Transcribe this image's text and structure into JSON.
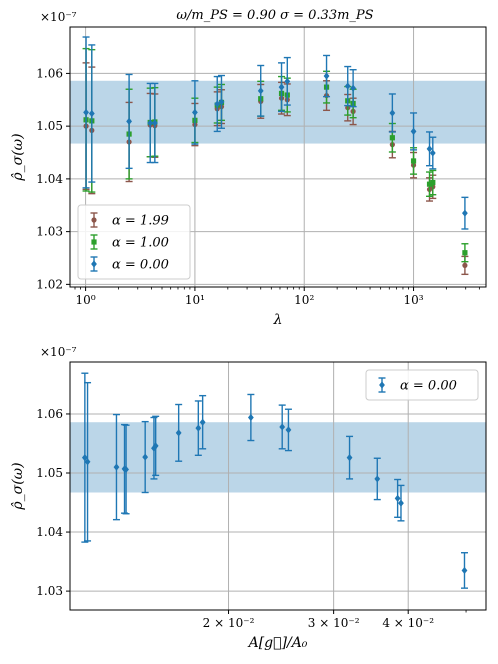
{
  "colors": {
    "alpha_199": "#8c564b",
    "alpha_100": "#2ca02c",
    "alpha_000": "#1f77b4",
    "band": "#1f77b4"
  },
  "chart_data": [
    {
      "type": "scatter",
      "title": "ω/m_PS = 0.90  σ = 0.33m_PS",
      "xlabel": "λ",
      "ylabel": "ρ̂_σ(ω)",
      "y_multiplier": "×10⁻⁷",
      "xscale": "log",
      "xlim": [
        0.72,
        4600
      ],
      "ylim": [
        1.0195,
        1.0688
      ],
      "x_ticks": [
        1,
        10,
        100,
        1000
      ],
      "x_tick_labels": [
        "10⁰",
        "10¹",
        "10²",
        "10³"
      ],
      "y_ticks": [
        1.02,
        1.03,
        1.04,
        1.05,
        1.06
      ],
      "y_tick_labels": [
        "1.02",
        "1.03",
        "1.04",
        "1.05",
        "1.06"
      ],
      "grid": true,
      "band": {
        "y_low": 1.0467,
        "y_high": 1.0586
      },
      "legend": {
        "placement": "lower-left",
        "entries": [
          "α = 1.99",
          "α = 1.00",
          "α = 0.00"
        ]
      },
      "series": [
        {
          "name": "α = 1.99",
          "color_key": "alpha_199",
          "marker": "circle",
          "x": [
            1.01,
            1.14,
            2.5,
            3.9,
            4.3,
            10.0,
            16.0,
            17.5,
            40,
            62,
            70,
            160,
            250,
            280,
            640,
            1000,
            1400,
            1500,
            2950
          ],
          "y": [
            1.05,
            1.0492,
            1.047,
            1.0502,
            1.0501,
            1.0503,
            1.0533,
            1.0537,
            1.0547,
            1.0553,
            1.055,
            1.0558,
            1.0535,
            1.0528,
            1.0465,
            1.0426,
            1.038,
            1.0385,
            1.0236
          ],
          "err": [
            0.012,
            0.012,
            0.0075,
            0.006,
            0.006,
            0.004,
            0.0032,
            0.0032,
            0.0032,
            0.003,
            0.003,
            0.0028,
            0.0025,
            0.0025,
            0.0025,
            0.0024,
            0.0022,
            0.0022,
            0.0017
          ]
        },
        {
          "name": "α = 1.00",
          "color_key": "alpha_100",
          "marker": "square",
          "x": [
            1.01,
            1.14,
            2.5,
            3.9,
            4.3,
            10.0,
            16.0,
            17.5,
            40,
            62,
            70,
            160,
            250,
            280,
            640,
            1000,
            1400,
            1500,
            2950
          ],
          "y": [
            1.0512,
            1.051,
            1.0485,
            1.0507,
            1.0508,
            1.0511,
            1.054,
            1.0545,
            1.0552,
            1.0562,
            1.0559,
            1.0574,
            1.0548,
            1.0543,
            1.0478,
            1.0434,
            1.039,
            1.0393,
            1.026
          ],
          "err": [
            0.0135,
            0.0135,
            0.0085,
            0.0065,
            0.0065,
            0.0042,
            0.0034,
            0.0034,
            0.0033,
            0.0032,
            0.0032,
            0.003,
            0.0027,
            0.0027,
            0.0027,
            0.0025,
            0.0023,
            0.0023,
            0.0017
          ]
        },
        {
          "name": "α = 0.00",
          "color_key": "alpha_000",
          "marker": "diamond",
          "x": [
            1.01,
            1.14,
            2.5,
            3.9,
            4.3,
            10.0,
            16.0,
            17.5,
            40,
            62,
            70,
            160,
            250,
            280,
            640,
            1000,
            1400,
            1500,
            2950
          ],
          "y": [
            1.0526,
            1.0524,
            1.0509,
            1.0506,
            1.0506,
            1.0526,
            1.0542,
            1.0546,
            1.0567,
            1.0574,
            1.0585,
            1.0595,
            1.0576,
            1.0572,
            1.0525,
            1.049,
            1.0457,
            1.0449,
            1.0335
          ],
          "err": [
            0.0143,
            0.013,
            0.0089,
            0.0075,
            0.0075,
            0.006,
            0.0052,
            0.005,
            0.0048,
            0.0046,
            0.0045,
            0.0039,
            0.0037,
            0.0035,
            0.0036,
            0.0035,
            0.0032,
            0.003,
            0.003
          ]
        }
      ]
    },
    {
      "type": "scatter",
      "title": "",
      "xlabel": "A[g⃗]/A₀",
      "ylabel": "ρ̂_σ(ω)",
      "y_multiplier": "×10⁻⁷",
      "xscale": "log",
      "xlim": [
        0.01085,
        0.054
      ],
      "ylim": [
        1.0268,
        1.0688
      ],
      "x_ticks": [
        0.02,
        0.03,
        0.04
      ],
      "x_tick_labels": [
        "2 × 10⁻²",
        "3 × 10⁻²",
        "4 × 10⁻²"
      ],
      "y_ticks": [
        1.03,
        1.04,
        1.05,
        1.06
      ],
      "y_tick_labels": [
        "1.03",
        "1.04",
        "1.05",
        "1.06"
      ],
      "grid": true,
      "band": {
        "y_low": 1.0467,
        "y_high": 1.0586
      },
      "legend": {
        "placement": "top-right",
        "entries": [
          "α = 0.00"
        ]
      },
      "series": [
        {
          "name": "α = 0.00",
          "color_key": "alpha_000",
          "marker": "diamond",
          "x": [
            0.01149,
            0.01161,
            0.01298,
            0.01339,
            0.01347,
            0.0145,
            0.015,
            0.0151,
            0.0165,
            0.0178,
            0.0181,
            0.0218,
            0.0246,
            0.0252,
            0.0319,
            0.0355,
            0.0384,
            0.0389,
            0.0497
          ],
          "y": [
            1.0526,
            1.0519,
            1.051,
            1.0507,
            1.0506,
            1.0527,
            1.0542,
            1.0546,
            1.0568,
            1.0576,
            1.0586,
            1.0594,
            1.0578,
            1.0573,
            1.0526,
            1.049,
            1.0457,
            1.0449,
            1.0335
          ],
          "err": [
            0.0143,
            0.0134,
            0.0089,
            0.0075,
            0.0075,
            0.006,
            0.0052,
            0.005,
            0.0048,
            0.0046,
            0.0045,
            0.0039,
            0.0037,
            0.0035,
            0.0036,
            0.0035,
            0.0032,
            0.003,
            0.003
          ]
        }
      ]
    }
  ]
}
